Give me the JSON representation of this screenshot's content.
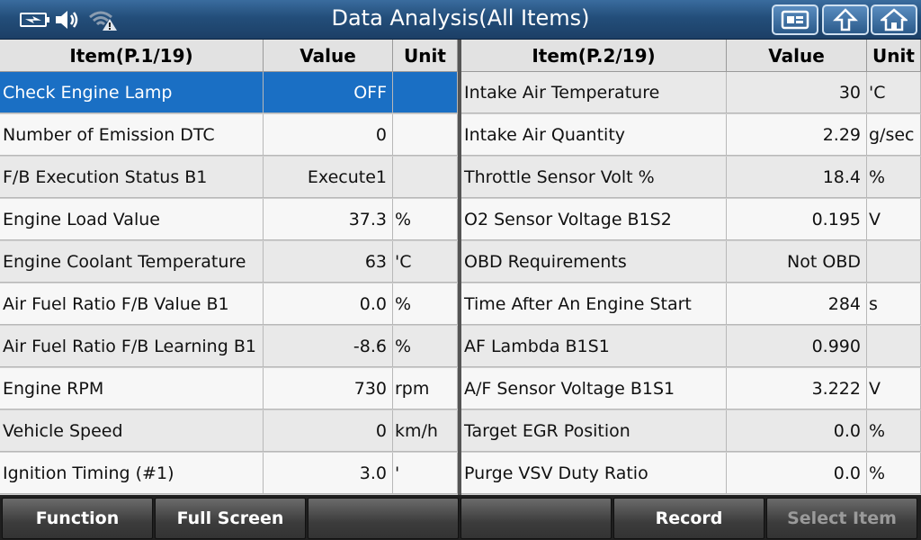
{
  "title": "Data Analysis(All Items)",
  "status_icons": [
    "battery-icon",
    "speaker-icon",
    "wifi-warning-icon"
  ],
  "toolbar_icons": [
    "screenshot-icon",
    "back-arrow-icon",
    "home-icon"
  ],
  "left": {
    "header": {
      "item": "Item(P.1/19)",
      "value": "Value",
      "unit": "Unit"
    },
    "rows": [
      {
        "item": "Check Engine Lamp",
        "value": "OFF",
        "unit": ""
      },
      {
        "item": "Number of Emission DTC",
        "value": "0",
        "unit": ""
      },
      {
        "item": "F/B Execution Status B1",
        "value": "Execute1",
        "unit": ""
      },
      {
        "item": "Engine Load Value",
        "value": "37.3",
        "unit": "%"
      },
      {
        "item": "Engine Coolant Temperature",
        "value": "63",
        "unit": "'C"
      },
      {
        "item": "Air Fuel Ratio F/B Value B1",
        "value": "0.0",
        "unit": "%"
      },
      {
        "item": "Air Fuel Ratio F/B Learning B1",
        "value": "-8.6",
        "unit": "%"
      },
      {
        "item": "Engine RPM",
        "value": "730",
        "unit": "rpm"
      },
      {
        "item": "Vehicle Speed",
        "value": "0",
        "unit": "km/h"
      },
      {
        "item": "Ignition Timing (#1)",
        "value": "3.0",
        "unit": "'"
      }
    ]
  },
  "right": {
    "header": {
      "item": "Item(P.2/19)",
      "value": "Value",
      "unit": "Unit"
    },
    "rows": [
      {
        "item": "Intake Air Temperature",
        "value": "30",
        "unit": "'C"
      },
      {
        "item": "Intake Air Quantity",
        "value": "2.29",
        "unit": "g/sec"
      },
      {
        "item": "Throttle Sensor Volt %",
        "value": "18.4",
        "unit": "%"
      },
      {
        "item": "O2 Sensor Voltage B1S2",
        "value": "0.195",
        "unit": "V"
      },
      {
        "item": "OBD Requirements",
        "value": "Not OBD",
        "unit": ""
      },
      {
        "item": "Time After An Engine Start",
        "value": "284",
        "unit": "s"
      },
      {
        "item": "AF Lambda B1S1",
        "value": "0.990",
        "unit": ""
      },
      {
        "item": "A/F Sensor Voltage B1S1",
        "value": "3.222",
        "unit": "V"
      },
      {
        "item": "Target EGR Position",
        "value": "0.0",
        "unit": "%"
      },
      {
        "item": "Purge VSV Duty Ratio",
        "value": "0.0",
        "unit": "%"
      }
    ]
  },
  "bottom": {
    "function": "Function",
    "full_screen": "Full Screen",
    "record": "Record",
    "select_item": "Select Item"
  },
  "colors": {
    "selected_row": "#1a6fc4",
    "titlebar": "#234e7a"
  }
}
